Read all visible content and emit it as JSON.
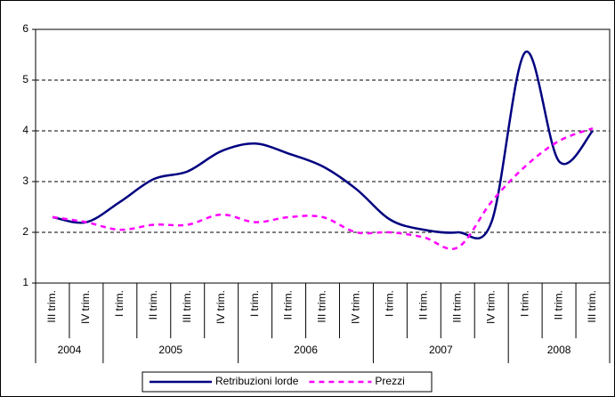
{
  "chart_data": {
    "type": "line",
    "categories": [
      "III trim.",
      "IV trim.",
      "I trim.",
      "II trim.",
      "III trim.",
      "IV trim.",
      "I trim.",
      "II trim.",
      "III trim.",
      "IV trim.",
      "I trim.",
      "II trim.",
      "III trim.",
      "IV trim.",
      "I trim.",
      "II trim.",
      "III trim."
    ],
    "years": [
      "2004",
      null,
      "2005",
      null,
      null,
      null,
      "2006",
      null,
      null,
      null,
      "2007",
      null,
      null,
      null,
      "2008",
      null,
      null
    ],
    "series": [
      {
        "name": "Retribuzioni lorde",
        "color": "#000080",
        "dashed": false,
        "values": [
          2.3,
          2.2,
          2.6,
          3.05,
          3.2,
          3.6,
          3.75,
          3.55,
          3.3,
          2.85,
          2.25,
          2.05,
          2.0,
          2.2,
          5.55,
          3.4,
          4.0
        ]
      },
      {
        "name": "Prezzi",
        "color": "#ff00ff",
        "dashed": true,
        "values": [
          2.3,
          2.2,
          2.05,
          2.15,
          2.15,
          2.35,
          2.2,
          2.3,
          2.3,
          2.0,
          2.0,
          1.9,
          1.7,
          2.6,
          3.3,
          3.8,
          4.05
        ]
      }
    ],
    "ylim": [
      1,
      6
    ],
    "yticks": [
      1,
      2,
      3,
      4,
      5,
      6
    ],
    "grid": true,
    "legend": "bottom"
  }
}
